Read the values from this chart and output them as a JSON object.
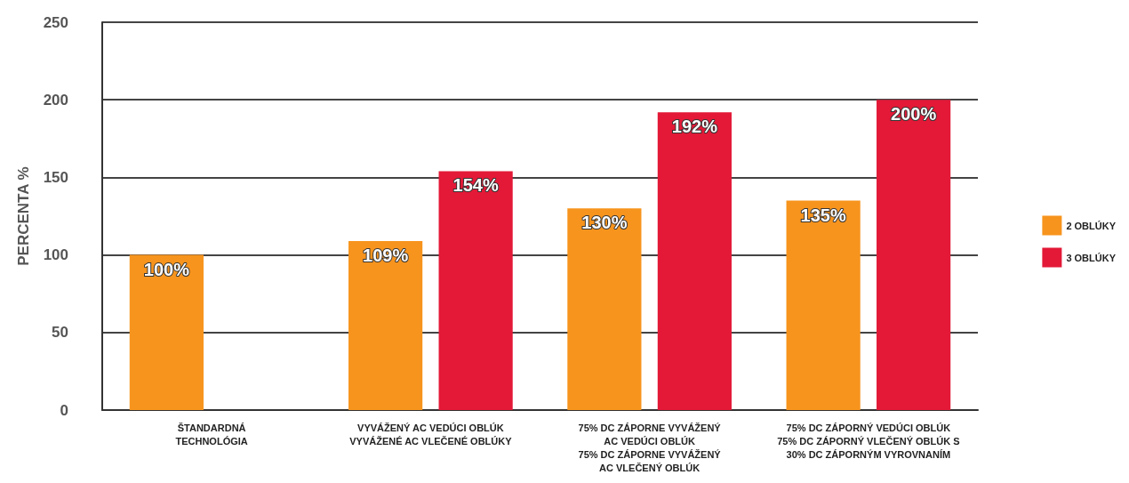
{
  "chart_data": {
    "type": "bar",
    "ylabel": "PERCENTA %",
    "categories": [
      "ŠTANDARDNÁ\nTECHNOLÓGIA",
      "VYVÁŽENÝ AC VEDÚCI OBLÚK\nVYVÁŽENÉ AC VLEČENÉ OBLÚKY",
      "75% DC ZÁPORNE VYVÁŽENÝ\nAC VEDÚCI OBLÚK\n75% DC ZÁPORNE VYVÁŽENÝ\nAC VLEČENÝ OBLÚK",
      "75% DC ZÁPORNÝ VEDÚCI OBLÚK\n75% DC ZÁPORNÝ VLEČENÝ OBLÚK S\n30% DC ZÁPORNÝM VYROVNANÍM"
    ],
    "series": [
      {
        "name": "2 OBLÚKY",
        "color": "#f7941d",
        "values": [
          100,
          109,
          130,
          135
        ],
        "value_labels": [
          "100%",
          "109%",
          "130%",
          "135%"
        ]
      },
      {
        "name": "3 OBLÚKY",
        "color": "#e31937",
        "values": [
          null,
          154,
          192,
          200
        ],
        "value_labels": [
          null,
          "154%",
          "192%",
          "200%"
        ]
      }
    ],
    "ylim": [
      0,
      250
    ],
    "yticks": [
      0,
      50,
      100,
      150,
      200,
      250
    ],
    "grid": "y",
    "legend": "right"
  }
}
